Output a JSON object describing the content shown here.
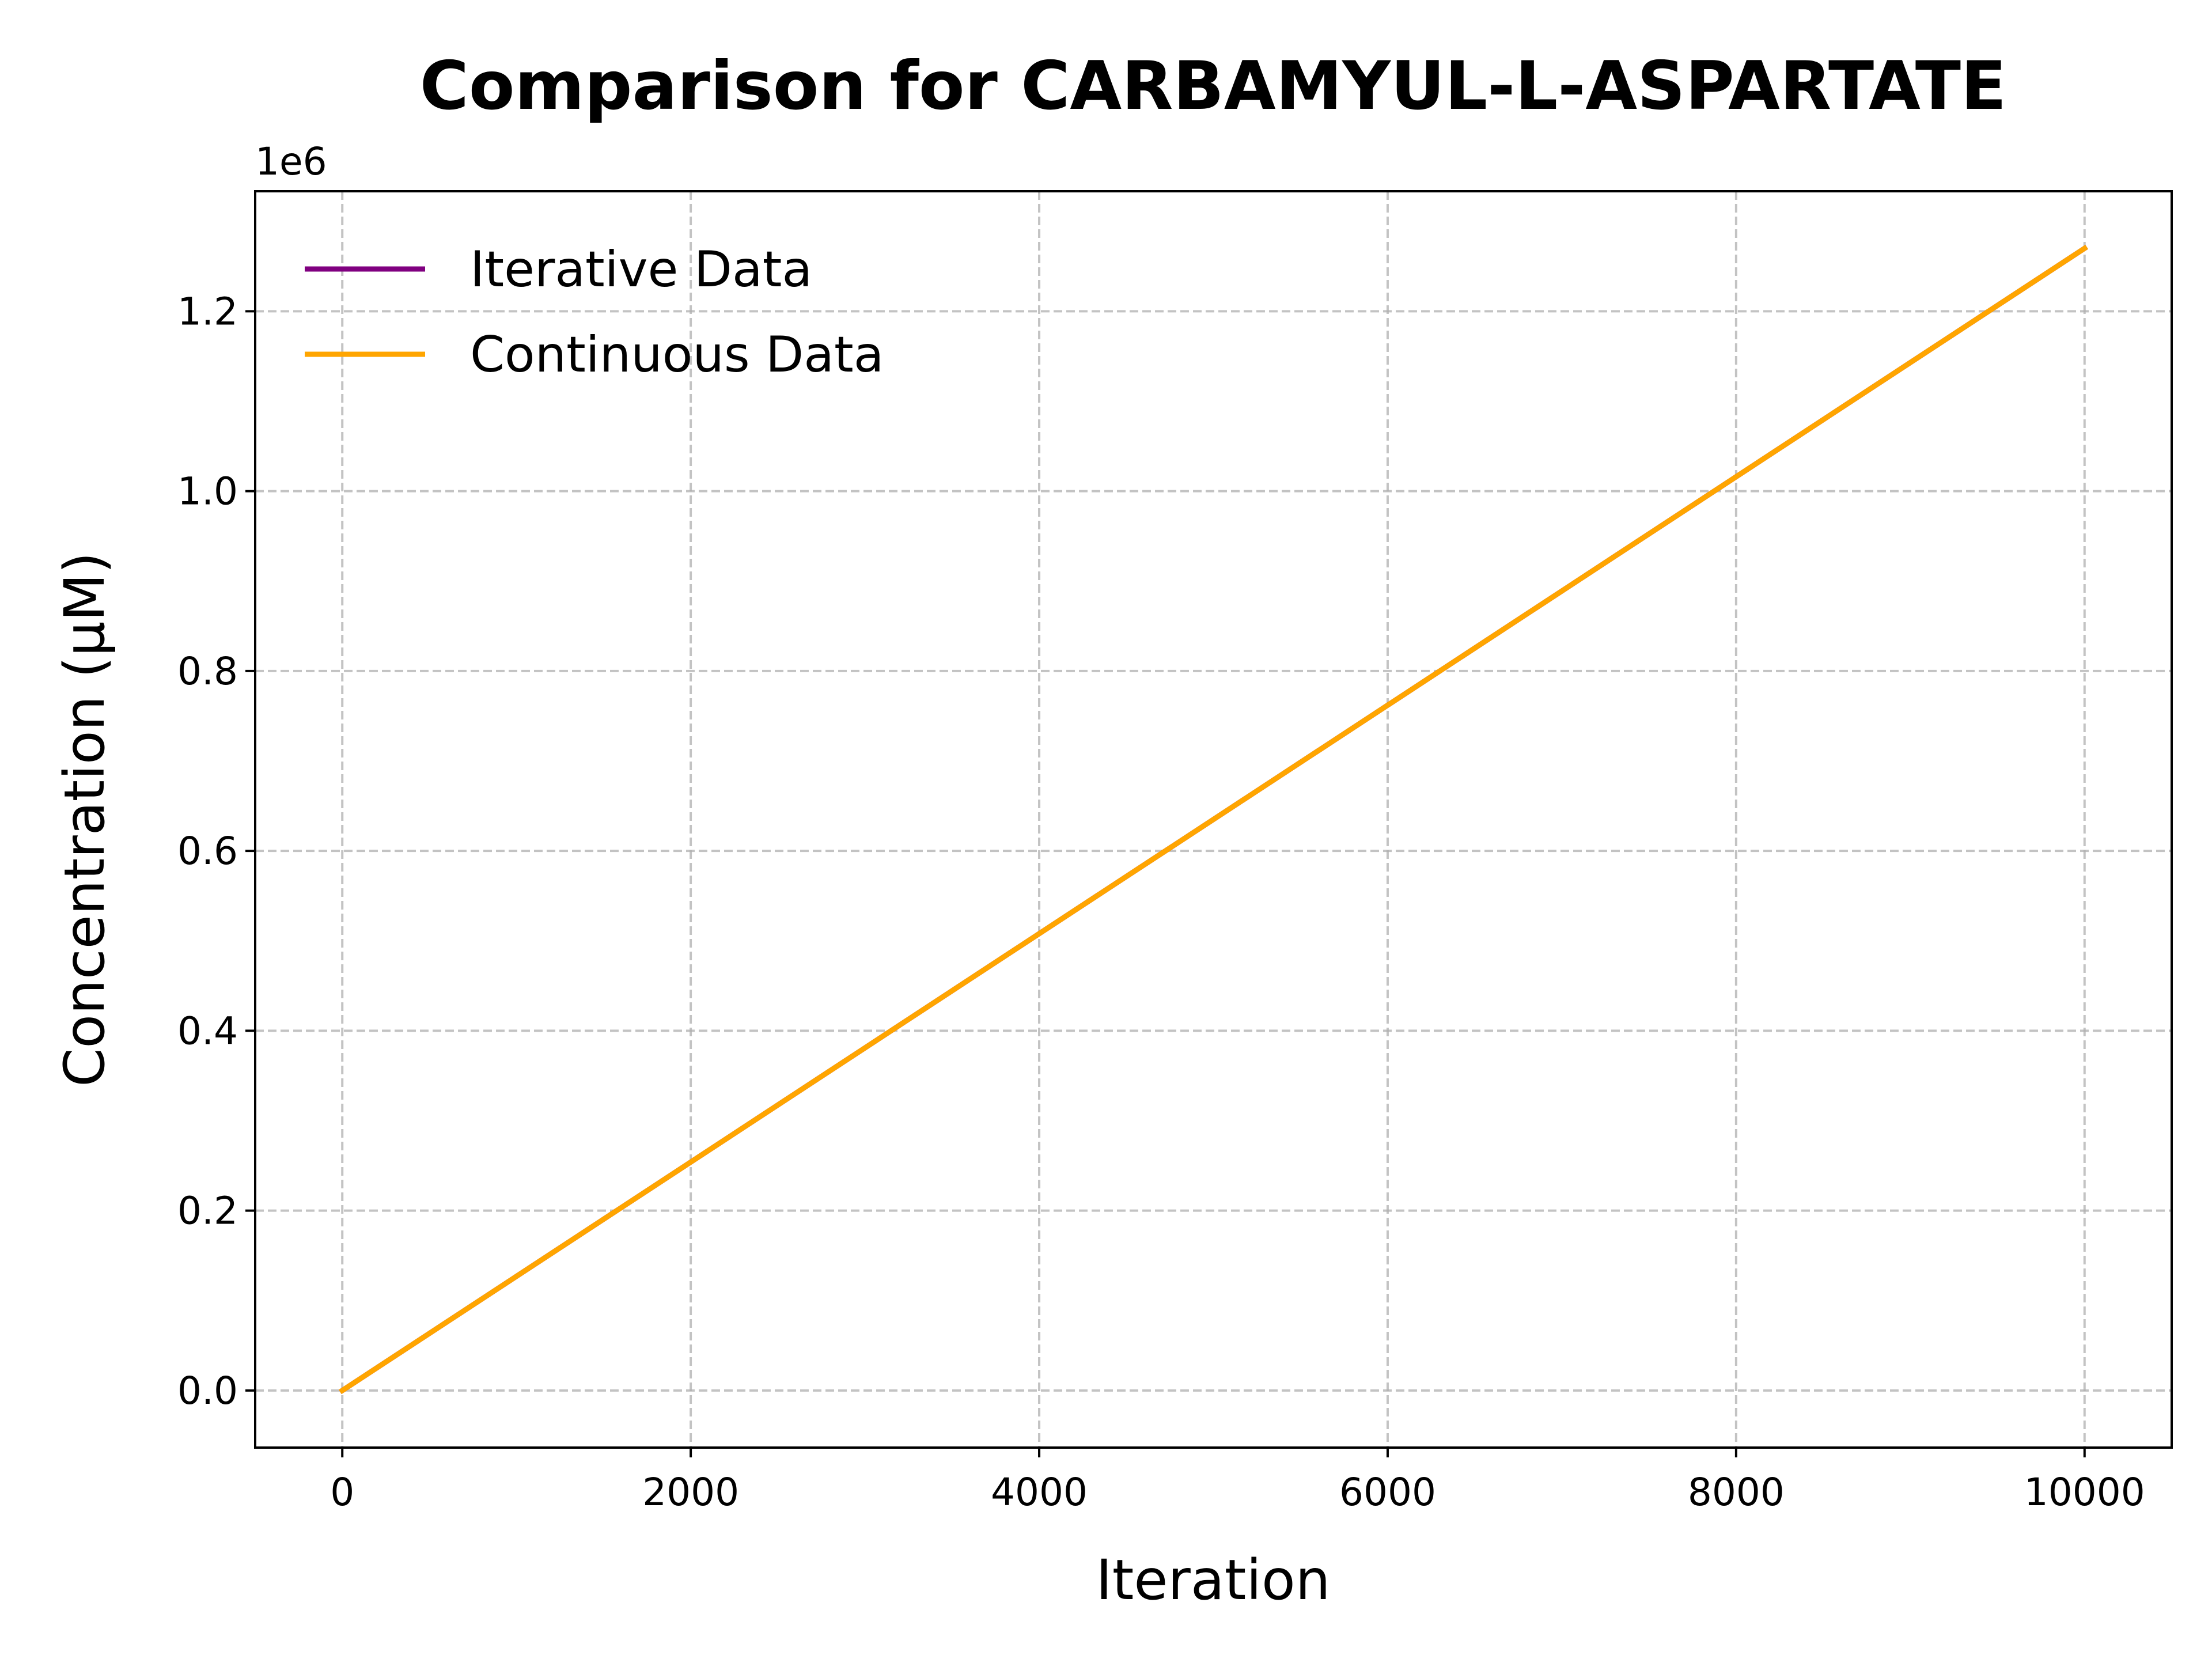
{
  "chart_data": {
    "type": "line",
    "title": "Comparison for CARBAMYUL-L-ASPARTATE",
    "xlabel": "Iteration",
    "ylabel": "Concentration (μM)",
    "y_offset_label": "1e6",
    "xlim": [
      -500,
      10500
    ],
    "ylim": [
      -0.0635,
      1.3335
    ],
    "x_ticks": [
      0,
      2000,
      4000,
      6000,
      8000,
      10000
    ],
    "x_tick_labels": [
      "0",
      "2000",
      "4000",
      "6000",
      "8000",
      "10000"
    ],
    "y_ticks": [
      0.0,
      0.2,
      0.4,
      0.6,
      0.8,
      1.0,
      1.2
    ],
    "y_tick_labels": [
      "0.0",
      "0.2",
      "0.4",
      "0.6",
      "0.8",
      "1.0",
      "1.2"
    ],
    "grid": true,
    "legend_position": "top-left",
    "series": [
      {
        "name": "Iterative Data",
        "color": "#800080",
        "x": [
          0,
          10000
        ],
        "y": [
          0.0,
          1.27
        ]
      },
      {
        "name": "Continuous Data",
        "color": "#FFA500",
        "x": [
          0,
          10000
        ],
        "y": [
          0.0,
          1.27
        ]
      }
    ]
  }
}
